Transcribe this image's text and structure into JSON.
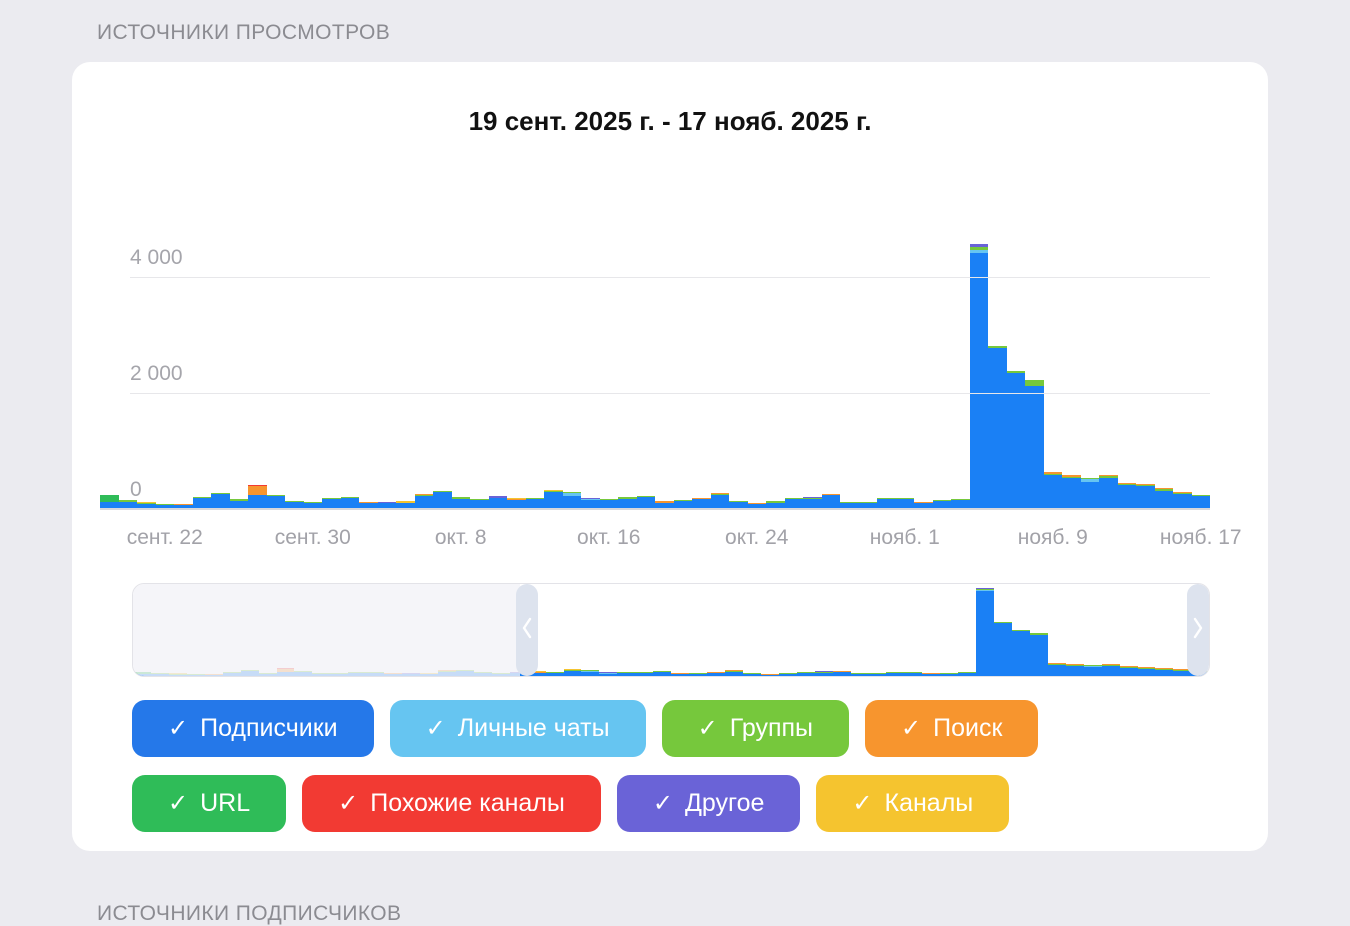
{
  "sections": {
    "views_title": "ИСТОЧНИКИ ПРОСМОТРОВ",
    "subscribers_title": "ИСТОЧНИКИ ПОДПИСЧИКОВ"
  },
  "chart_data": {
    "type": "bar",
    "stacked": true,
    "title": "19 сент. 2025 г. - 17 нояб. 2025 г.",
    "date_range": {
      "start": "19 сент. 2025 г.",
      "end": "17 нояб. 2025 г."
    },
    "ylim": [
      0,
      4600
    ],
    "grid": true,
    "y_gridlines": [
      {
        "label": "0",
        "value": 0
      },
      {
        "label": "2 000",
        "value": 2000
      },
      {
        "label": "4 000",
        "value": 4000
      }
    ],
    "x_ticks": [
      {
        "label": "сент. 22",
        "index": 3
      },
      {
        "label": "сент. 30",
        "index": 11
      },
      {
        "label": "окт. 8",
        "index": 19
      },
      {
        "label": "окт. 16",
        "index": 27
      },
      {
        "label": "окт. 24",
        "index": 35
      },
      {
        "label": "нояб. 1",
        "index": 43
      },
      {
        "label": "нояб. 9",
        "index": 51
      },
      {
        "label": "нояб. 17",
        "index": 59
      }
    ],
    "stack_order": [
      "subscribers",
      "private_chats",
      "groups",
      "search",
      "url",
      "similar_channels",
      "other",
      "channels"
    ],
    "colors": {
      "subscribers": "#1a80f5",
      "private_chats": "#66c5f1",
      "groups": "#76c83c",
      "search": "#f7952e",
      "url": "#2fbc58",
      "similar_channels": "#f23a33",
      "other": "#6a63d7",
      "channels": "#f5c42f"
    },
    "series_labels": {
      "subscribers": "Подписчики",
      "private_chats": "Личные чаты",
      "groups": "Группы",
      "search": "Поиск",
      "url": "URL",
      "similar_channels": "Похожие каналы",
      "other": "Другое",
      "channels": "Каналы"
    },
    "bars": [
      {
        "subscribers": 100,
        "url": 130
      },
      {
        "subscribers": 110,
        "groups": 20
      },
      {
        "subscribers": 70,
        "channels": 18,
        "groups": 12
      },
      {
        "subscribers": 60,
        "groups": 15
      },
      {
        "subscribers": 50,
        "search": 18
      },
      {
        "subscribers": 170,
        "groups": 20
      },
      {
        "subscribers": 245,
        "groups": 20
      },
      {
        "subscribers": 120,
        "groups": 30
      },
      {
        "subscribers": 220,
        "search": 165,
        "similar_channels": 15
      },
      {
        "subscribers": 215,
        "groups": 15
      },
      {
        "subscribers": 100,
        "groups": 20
      },
      {
        "subscribers": 80,
        "groups": 15
      },
      {
        "subscribers": 150,
        "groups": 25
      },
      {
        "subscribers": 165,
        "groups": 20
      },
      {
        "subscribers": 90,
        "search": 20
      },
      {
        "subscribers": 85,
        "other": 18
      },
      {
        "subscribers": 95,
        "channels": 20
      },
      {
        "subscribers": 200,
        "groups": 25,
        "search": 15
      },
      {
        "subscribers": 280,
        "groups": 20
      },
      {
        "subscribers": 150,
        "groups": 40
      },
      {
        "subscribers": 130,
        "groups": 20
      },
      {
        "subscribers": 175,
        "other": 30
      },
      {
        "subscribers": 140,
        "search": 20,
        "channels": 15
      },
      {
        "subscribers": 155,
        "groups": 20
      },
      {
        "subscribers": 270,
        "groups": 25,
        "channels": 15
      },
      {
        "subscribers": 200,
        "private_chats": 60,
        "groups": 15
      },
      {
        "subscribers": 130,
        "private_chats": 20,
        "other": 20
      },
      {
        "subscribers": 140,
        "groups": 20
      },
      {
        "subscribers": 160,
        "groups": 30
      },
      {
        "subscribers": 185,
        "groups": 25
      },
      {
        "subscribers": 90,
        "search": 25
      },
      {
        "subscribers": 120,
        "groups": 15
      },
      {
        "subscribers": 155,
        "search": 20
      },
      {
        "subscribers": 225,
        "groups": 20,
        "search": 15
      },
      {
        "subscribers": 110,
        "groups": 15
      },
      {
        "subscribers": 70,
        "search": 15
      },
      {
        "subscribers": 95,
        "groups": 20
      },
      {
        "subscribers": 150,
        "groups": 15
      },
      {
        "subscribers": 155,
        "other": 15,
        "groups": 10
      },
      {
        "subscribers": 225,
        "search": 20
      },
      {
        "subscribers": 80,
        "groups": 15
      },
      {
        "subscribers": 90,
        "groups": 15
      },
      {
        "subscribers": 155,
        "groups": 20
      },
      {
        "subscribers": 150,
        "groups": 15
      },
      {
        "subscribers": 90,
        "search": 20
      },
      {
        "subscribers": 120,
        "groups": 15
      },
      {
        "subscribers": 135,
        "groups": 15
      },
      {
        "subscribers": 4400,
        "private_chats": 45,
        "groups": 60,
        "other": 45
      },
      {
        "subscribers": 2760,
        "groups": 25
      },
      {
        "subscribers": 2330,
        "groups": 30
      },
      {
        "subscribers": 2110,
        "groups": 90
      },
      {
        "subscribers": 570,
        "search": 30,
        "groups": 15
      },
      {
        "subscribers": 510,
        "search": 35,
        "groups": 15
      },
      {
        "subscribers": 455,
        "private_chats": 40,
        "groups": 15
      },
      {
        "subscribers": 520,
        "groups": 30,
        "search": 10
      },
      {
        "subscribers": 390,
        "groups": 25,
        "search": 15
      },
      {
        "subscribers": 380,
        "groups": 20,
        "search": 15
      },
      {
        "subscribers": 300,
        "groups": 30,
        "search": 15
      },
      {
        "subscribers": 240,
        "groups": 25,
        "search": 15
      },
      {
        "subscribers": 200,
        "groups": 20
      }
    ]
  },
  "slider": {
    "unselected_fraction_left": 0.359
  },
  "legend": {
    "check": "✓",
    "rows": [
      [
        {
          "key": "subscribers",
          "label": "Подписчики",
          "color": "#2578e9"
        },
        {
          "key": "private_chats",
          "label": "Личные чаты",
          "color": "#66c5f1"
        },
        {
          "key": "groups",
          "label": "Группы",
          "color": "#76c83c"
        },
        {
          "key": "search",
          "label": "Поиск",
          "color": "#f7952e"
        }
      ],
      [
        {
          "key": "url",
          "label": "URL",
          "color": "#2fbc58"
        },
        {
          "key": "similar_channels",
          "label": "Похожие каналы",
          "color": "#f23a33"
        },
        {
          "key": "other",
          "label": "Другое",
          "color": "#6a63d7"
        },
        {
          "key": "channels",
          "label": "Каналы",
          "color": "#f5c42f"
        }
      ]
    ]
  }
}
